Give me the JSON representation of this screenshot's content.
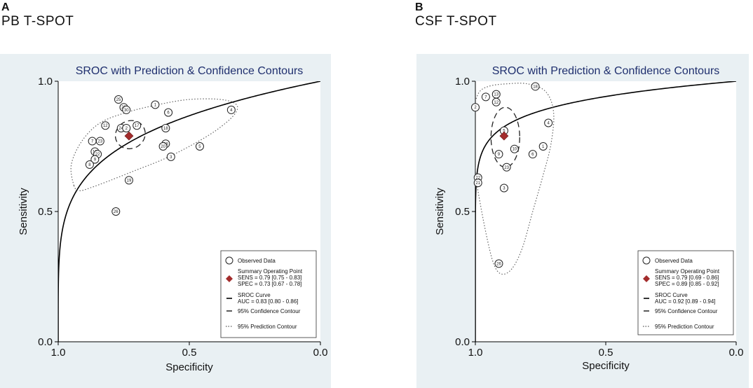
{
  "figure": {
    "panels": [
      {
        "letter": "A",
        "title": "PB T-SPOT"
      },
      {
        "letter": "B",
        "title": "CSF T-SPOT"
      }
    ]
  },
  "colors": {
    "panel_bg": "#e9f0f3",
    "plot_bg": "#ffffff",
    "summary_point": "#a32c2c",
    "title_text": "#1f2f6e",
    "curve": "#000000",
    "contour": "#666666"
  },
  "chart_data": [
    {
      "type": "scatter",
      "title": "SROC with Prediction & Confidence Contours",
      "xlabel": "Specificity",
      "ylabel": "Sensitivity",
      "xlim": [
        1.0,
        0.0
      ],
      "ylim": [
        0.0,
        1.0
      ],
      "x_ticks": [
        "1.0",
        "0.5",
        "0.0"
      ],
      "y_ticks": [
        "0.0",
        "0.5",
        "1.0"
      ],
      "sroc_auc": 0.83,
      "points": [
        {
          "id": "25",
          "spec": 0.77,
          "sens": 0.93
        },
        {
          "id": "1",
          "spec": 0.63,
          "sens": 0.91
        },
        {
          "id": "29",
          "spec": 0.75,
          "sens": 0.9
        },
        {
          "id": "30",
          "spec": 0.74,
          "sens": 0.89
        },
        {
          "id": "6",
          "spec": 0.58,
          "sens": 0.88
        },
        {
          "id": "4",
          "spec": 0.34,
          "sens": 0.89
        },
        {
          "id": "12",
          "spec": 0.82,
          "sens": 0.83
        },
        {
          "id": "18",
          "spec": 0.59,
          "sens": 0.82
        },
        {
          "id": "17",
          "spec": 0.7,
          "sens": 0.83
        },
        {
          "id": "24",
          "spec": 0.76,
          "sens": 0.82
        },
        {
          "id": "2",
          "spec": 0.74,
          "sens": 0.82
        },
        {
          "id": "23",
          "spec": 0.84,
          "sens": 0.77
        },
        {
          "id": "7",
          "spec": 0.87,
          "sens": 0.77
        },
        {
          "id": "28",
          "spec": 0.59,
          "sens": 0.76
        },
        {
          "id": "20",
          "spec": 0.6,
          "sens": 0.75
        },
        {
          "id": "5",
          "spec": 0.46,
          "sens": 0.75
        },
        {
          "id": "13",
          "spec": 0.86,
          "sens": 0.73
        },
        {
          "id": "22",
          "spec": 0.85,
          "sens": 0.72
        },
        {
          "id": "9",
          "spec": 0.86,
          "sens": 0.7
        },
        {
          "id": "3",
          "spec": 0.57,
          "sens": 0.71
        },
        {
          "id": "8",
          "spec": 0.88,
          "sens": 0.68
        },
        {
          "id": "19",
          "spec": 0.73,
          "sens": 0.62
        },
        {
          "id": "26",
          "spec": 0.78,
          "sens": 0.5
        }
      ],
      "summary_point": {
        "spec": 0.73,
        "sens": 0.79
      },
      "legend": [
        {
          "key": "observed",
          "text": [
            "Observed Data"
          ]
        },
        {
          "key": "summary",
          "text": [
            "Summary Operating Point",
            "SENS = 0.79 [0.75 - 0.83]",
            "SPEC = 0.73 [0.67 - 0.78]"
          ]
        },
        {
          "key": "sroc",
          "text": [
            "SROC Curve",
            "AUC = 0.83 [0.80 - 0.86]"
          ]
        },
        {
          "key": "confidence",
          "text": [
            "95% Confidence Contour"
          ]
        },
        {
          "key": "prediction",
          "text": [
            "95% Prediction Contour"
          ]
        }
      ]
    },
    {
      "type": "scatter",
      "title": "SROC with Prediction & Confidence Contours",
      "xlabel": "Specificity",
      "ylabel": "Sensitivity",
      "xlim": [
        1.0,
        0.0
      ],
      "ylim": [
        0.0,
        1.0
      ],
      "x_ticks": [
        "1.0",
        "0.5",
        "0.0"
      ],
      "y_ticks": [
        "0.0",
        "0.5",
        "1.0"
      ],
      "sroc_auc": 0.92,
      "points": [
        {
          "id": "18",
          "spec": 0.77,
          "sens": 0.98
        },
        {
          "id": "13",
          "spec": 0.92,
          "sens": 0.95
        },
        {
          "id": "7",
          "spec": 0.96,
          "sens": 0.94
        },
        {
          "id": "12",
          "spec": 0.92,
          "sens": 0.92
        },
        {
          "id": "2",
          "spec": 1.0,
          "sens": 0.9
        },
        {
          "id": "4",
          "spec": 0.72,
          "sens": 0.84
        },
        {
          "id": "5",
          "spec": 0.89,
          "sens": 0.81
        },
        {
          "id": "1",
          "spec": 0.74,
          "sens": 0.75
        },
        {
          "id": "10",
          "spec": 0.85,
          "sens": 0.74
        },
        {
          "id": "6",
          "spec": 0.78,
          "sens": 0.72
        },
        {
          "id": "9",
          "spec": 0.91,
          "sens": 0.72
        },
        {
          "id": "23",
          "spec": 0.88,
          "sens": 0.67
        },
        {
          "id": "22",
          "spec": 0.99,
          "sens": 0.63
        },
        {
          "id": "21",
          "spec": 0.99,
          "sens": 0.61
        },
        {
          "id": "3",
          "spec": 0.89,
          "sens": 0.59
        },
        {
          "id": "26",
          "spec": 0.91,
          "sens": 0.3
        }
      ],
      "summary_point": {
        "spec": 0.89,
        "sens": 0.79
      },
      "legend": [
        {
          "key": "observed",
          "text": [
            "Observed Data"
          ]
        },
        {
          "key": "summary",
          "text": [
            "Summary Operating Point",
            "SENS = 0.79 [0.69 - 0.86]",
            "SPEC = 0.89 [0.85 - 0.92]"
          ]
        },
        {
          "key": "sroc",
          "text": [
            "SROC Curve",
            "AUC = 0.92 [0.89 - 0.94]"
          ]
        },
        {
          "key": "confidence",
          "text": [
            "95% Confidence Contour"
          ]
        },
        {
          "key": "prediction",
          "text": [
            "95% Prediction Contour"
          ]
        }
      ]
    }
  ]
}
